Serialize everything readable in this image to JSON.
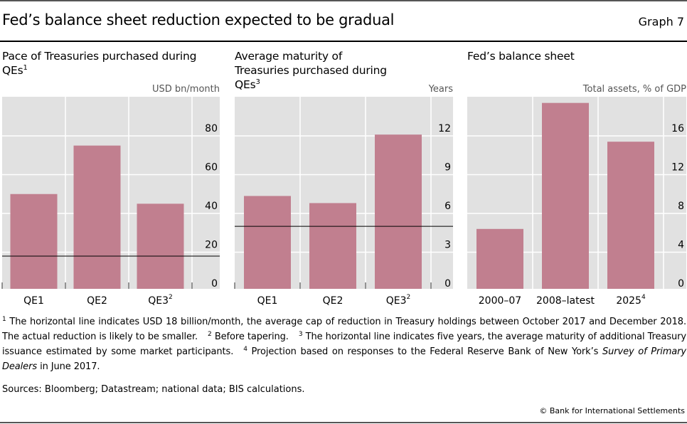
{
  "header": {
    "title": "Fed’s balance sheet reduction expected to be gradual",
    "graph_number": "Graph 7"
  },
  "colors": {
    "bar": "#c17f8f",
    "plot_background": "#e1e1e1",
    "gridline": "#ffffff",
    "reference_line": "#000000"
  },
  "chart_data": [
    {
      "type": "bar",
      "title": "Pace of Treasuries purchased during QEs",
      "title_footnote": "1",
      "ylabel": "USD bn/month",
      "categories": [
        "QE1",
        "QE2",
        "QE3"
      ],
      "category_footnotes": [
        "",
        "",
        "2"
      ],
      "values": [
        50,
        75,
        45
      ],
      "ylim": [
        0,
        100
      ],
      "yticks": [
        0,
        20,
        40,
        60,
        80
      ],
      "reference_line": 18,
      "grid": true,
      "y_axis_side": "right"
    },
    {
      "type": "bar",
      "title": "Average maturity of Treasuries purchased during QEs",
      "title_footnote": "3",
      "ylabel": "Years",
      "categories": [
        "QE1",
        "QE2",
        "QE3"
      ],
      "category_footnotes": [
        "",
        "",
        "2"
      ],
      "values": [
        7.35,
        6.8,
        12.1
      ],
      "ylim": [
        0,
        15
      ],
      "yticks": [
        0,
        3,
        6,
        9,
        12
      ],
      "reference_line": 5,
      "grid": true,
      "y_axis_side": "right"
    },
    {
      "type": "bar",
      "title": "Fed’s balance sheet",
      "title_footnote": "",
      "ylabel": "Total assets, % of GDP",
      "categories": [
        "2000–07",
        "2008–latest",
        "2025"
      ],
      "category_footnotes": [
        "",
        "",
        "4"
      ],
      "values": [
        6.4,
        19.4,
        15.4
      ],
      "ylim": [
        0,
        20
      ],
      "yticks": [
        0,
        4,
        8,
        12,
        16
      ],
      "reference_line": null,
      "grid": true,
      "y_axis_side": "right"
    }
  ],
  "footnotes": {
    "n1_mark": "1",
    "n1_text": "The horizontal line indicates USD 18 billion/month, the average cap of reduction in Treasury holdings between October 2017 and December 2018. The actual reduction is likely to be smaller.",
    "n2_mark": "2",
    "n2_text": "Before tapering.",
    "n3_mark": "3",
    "n3_text": "The horizontal line indicates five years, the average maturity of additional Treasury issuance estimated by some market participants.",
    "n4_mark": "4",
    "n4_text_before": "Projection based on responses to the Federal Reserve Bank of New York’s",
    "n4_text_italic": "Survey of Primary Dealers",
    "n4_text_after": "in June 2017."
  },
  "sources": "Sources: Bloomberg; Datastream; national data; BIS calculations.",
  "copyright": "© Bank for International Settlements"
}
